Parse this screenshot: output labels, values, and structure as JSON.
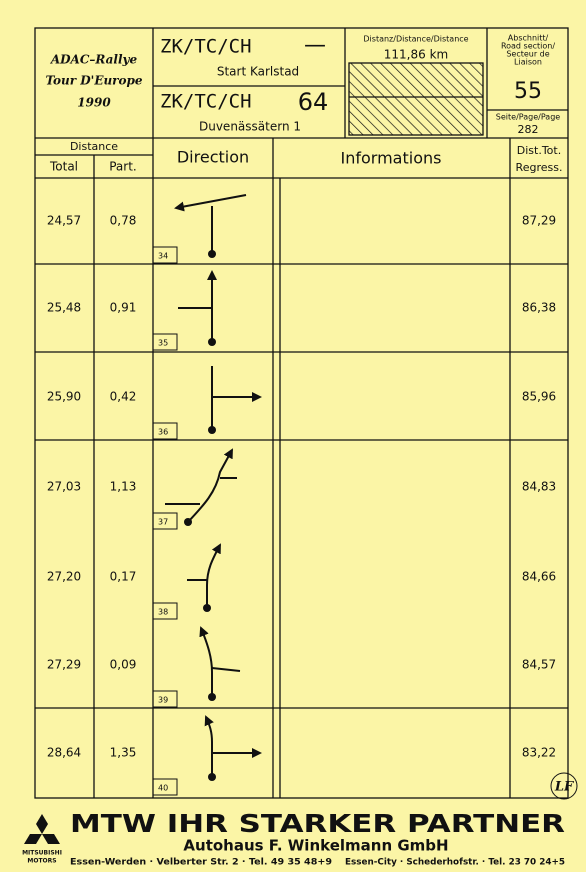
{
  "header": {
    "event": [
      "ADAC–Rallye",
      "Tour D'Europe",
      "1990"
    ],
    "start": {
      "code": "ZK/TC/CH",
      "number": "—",
      "name": "Start Karlstad"
    },
    "end": {
      "code": "ZK/TC/CH",
      "number": "64",
      "name": "Duvenässätern 1"
    },
    "distance": {
      "label": "Distanz/Distance/Distance",
      "value": "111,86 km"
    },
    "section": {
      "label": [
        "Abschnitt/",
        "Road section/",
        "Secteur de",
        "Liaison"
      ],
      "value": "55"
    },
    "page": {
      "label": "Seite/Page/Page",
      "value": "282"
    }
  },
  "columns": {
    "distance": "Distance",
    "total": "Total",
    "partial": "Part.",
    "direction": "Direction",
    "informations": "Informations",
    "regress": [
      "Dist.Tot.",
      "Regress."
    ]
  },
  "rows": [
    {
      "total": "24,57",
      "partial": "0,78",
      "number": "34",
      "regress": "87,29"
    },
    {
      "total": "25,48",
      "partial": "0,91",
      "number": "35",
      "regress": "86,38"
    },
    {
      "total": "25,90",
      "partial": "0,42",
      "number": "36",
      "regress": "85,96"
    },
    {
      "total": "27,03",
      "partial": "1,13",
      "number": "37",
      "regress": "84,83"
    },
    {
      "total": "27,20",
      "partial": "0,17",
      "number": "38",
      "regress": "84,66"
    },
    {
      "total": "27,29",
      "partial": "0,09",
      "number": "39",
      "regress": "84,57"
    },
    {
      "total": "28,64",
      "partial": "1,35",
      "number": "40",
      "regress": "83,22"
    }
  ],
  "stamp": "LF",
  "footer": {
    "brand": [
      "MITSUBISHI",
      "MOTORS"
    ],
    "slogan": "MTW IHR STARKER PARTNER",
    "company": "Autohaus F. Winkelmann GmbH",
    "address_left": "Essen-Werden · Velberter Str. 2 · Tel. 49 35 48+9",
    "address_right": "Essen-City · Schederhofstr. · Tel. 23 70 24+5"
  }
}
